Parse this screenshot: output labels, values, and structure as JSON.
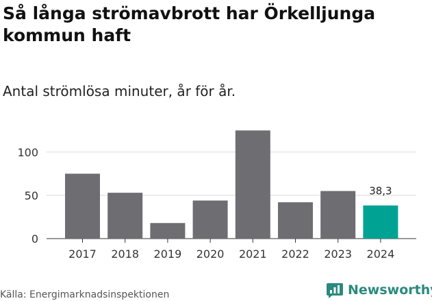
{
  "header": {
    "title": "Så långa strömavbrott har Örkelljunga kommun haft",
    "subtitle": "Antal strömlösa minuter, år för år."
  },
  "footer": {
    "source": "Källa: Energimarknadsinspektionen",
    "brand": "Newsworthy"
  },
  "colors": {
    "bar": "#6e6d72",
    "highlight": "#00a294",
    "grid": "#d8d8d8",
    "axis": "#333333",
    "brand": "#2a8a7e"
  },
  "chart_data": {
    "type": "bar",
    "title": "Så långa strömavbrott har Örkelljunga kommun haft",
    "subtitle": "Antal strömlösa minuter, år för år.",
    "xlabel": "",
    "ylabel": "",
    "categories": [
      "2017",
      "2018",
      "2019",
      "2020",
      "2021",
      "2022",
      "2023",
      "2024"
    ],
    "values": [
      75,
      53,
      18,
      44,
      125,
      42,
      55,
      38.3
    ],
    "highlight_index": 7,
    "highlight_label": "38,3",
    "yticks": [
      0,
      50,
      100
    ],
    "ytick_labels": [
      "0",
      "50",
      "100"
    ],
    "ylim": [
      0,
      130
    ],
    "grid": true
  }
}
